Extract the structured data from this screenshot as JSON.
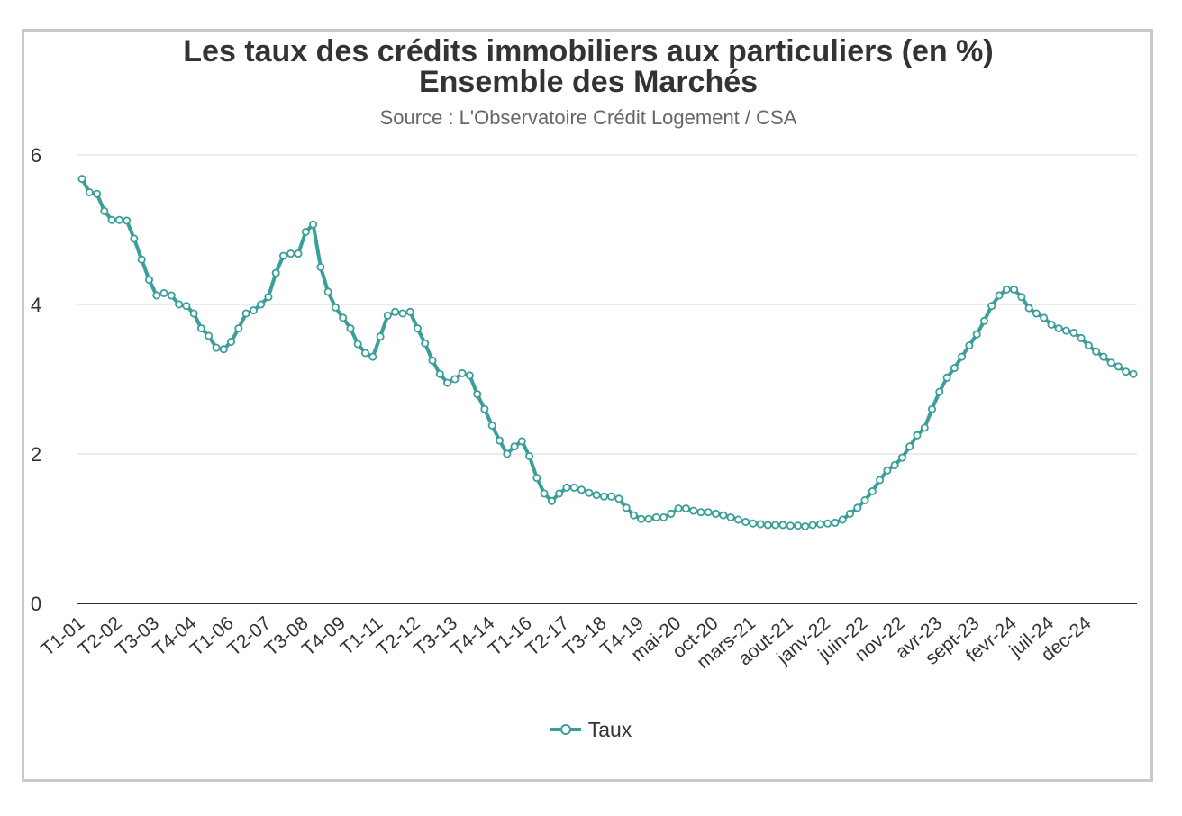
{
  "colors": {
    "series": "#3a9e99",
    "grid": "#e6e6e6",
    "axis": "#333333",
    "frame": "#c9c9c9"
  },
  "legend_icon": "line-with-circle-marker",
  "chart_data": {
    "type": "line",
    "title_line1": "Les taux des crédits immobiliers aux particuliers (en %)",
    "title_line2": "Ensemble des Marchés",
    "subtitle": "Source : L'Observatoire Crédit Logement / CSA",
    "xlabel": "",
    "ylabel": "",
    "ylim": [
      0,
      6
    ],
    "yticks": [
      "0",
      "2",
      "4",
      "6"
    ],
    "grid": true,
    "legend_position": "bottom-center",
    "x_tick_labels": [
      "T1-01",
      "T2-02",
      "T3-03",
      "T4-04",
      "T1-06",
      "T2-07",
      "T3-08",
      "T4-09",
      "T1-11",
      "T2-12",
      "T3-13",
      "T4-14",
      "T1-16",
      "T2-17",
      "T3-18",
      "T4-19",
      "mai-20",
      "oct-20",
      "mars-21",
      "aout-21",
      "janv-22",
      "juin-22",
      "nov-22",
      "avr-23",
      "sept-23",
      "fevr-24",
      "juil-24",
      "dec-24"
    ],
    "series": [
      {
        "name": "Taux",
        "values": [
          5.68,
          5.5,
          5.48,
          5.25,
          5.13,
          5.13,
          5.12,
          4.88,
          4.6,
          4.33,
          4.12,
          4.15,
          4.12,
          4.0,
          3.98,
          3.88,
          3.68,
          3.58,
          3.42,
          3.4,
          3.5,
          3.68,
          3.88,
          3.92,
          4.0,
          4.1,
          4.42,
          4.65,
          4.68,
          4.68,
          4.97,
          5.07,
          4.5,
          4.17,
          3.96,
          3.82,
          3.68,
          3.47,
          3.35,
          3.3,
          3.57,
          3.85,
          3.9,
          3.88,
          3.9,
          3.68,
          3.48,
          3.25,
          3.07,
          2.95,
          3.0,
          3.08,
          3.05,
          2.8,
          2.6,
          2.38,
          2.18,
          2.0,
          2.1,
          2.17,
          1.97,
          1.68,
          1.47,
          1.37,
          1.47,
          1.55,
          1.55,
          1.52,
          1.48,
          1.45,
          1.43,
          1.43,
          1.4,
          1.28,
          1.18,
          1.13,
          1.13,
          1.15,
          1.15,
          1.2,
          1.27,
          1.27,
          1.24,
          1.22,
          1.22,
          1.2,
          1.18,
          1.15,
          1.12,
          1.09,
          1.07,
          1.06,
          1.05,
          1.05,
          1.05,
          1.04,
          1.04,
          1.03,
          1.05,
          1.06,
          1.07,
          1.08,
          1.12,
          1.2,
          1.28,
          1.38,
          1.5,
          1.65,
          1.78,
          1.85,
          1.95,
          2.1,
          2.25,
          2.35,
          2.6,
          2.83,
          3.02,
          3.15,
          3.3,
          3.45,
          3.6,
          3.78,
          3.98,
          4.12,
          4.2,
          4.2,
          4.1,
          3.95,
          3.88,
          3.82,
          3.73,
          3.68,
          3.65,
          3.62,
          3.55,
          3.45,
          3.37,
          3.3,
          3.22,
          3.17,
          3.1,
          3.07
        ]
      }
    ]
  }
}
